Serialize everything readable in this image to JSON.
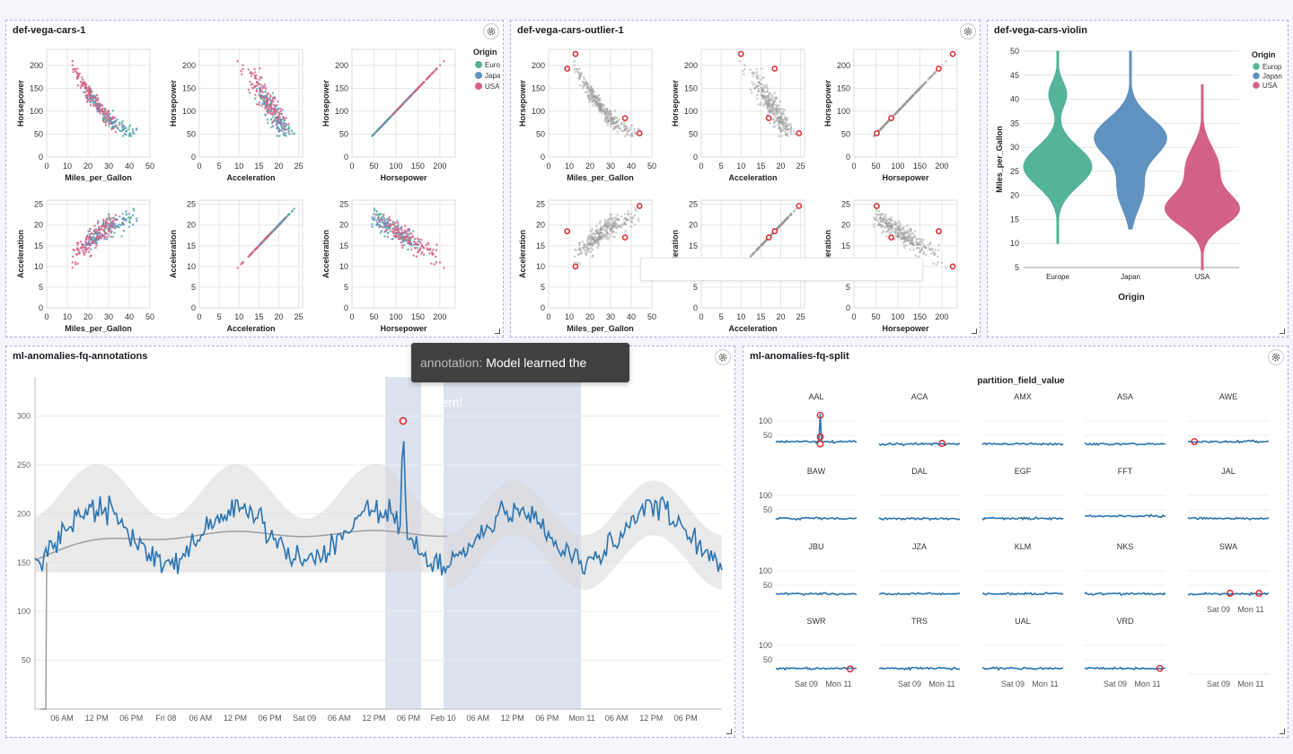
{
  "panels": {
    "cars": {
      "title": "def-vega-cars-1"
    },
    "outlier": {
      "title": "def-vega-cars-outlier-1"
    },
    "violin": {
      "title": "def-vega-cars-violin"
    },
    "annotations": {
      "title": "ml-anomalies-fq-annotations"
    },
    "split": {
      "title": "ml-anomalies-fq-split"
    }
  },
  "tooltip": {
    "key": "annotation:",
    "value": "Model learned the pattern!"
  },
  "legend": {
    "title": "Origin",
    "items": [
      "Euro",
      "Japa",
      "USA"
    ],
    "violin_items": [
      "Europ",
      "Japan",
      "USA"
    ]
  },
  "colors": {
    "europe": "#54b399",
    "japan": "#6092c0",
    "usa": "#d36086",
    "outlier": "#e7664c",
    "line": "#2b74b1",
    "band": "#dde3ee"
  },
  "chart_data": [
    {
      "type": "scatter",
      "name": "scatter-matrix",
      "fields": [
        "Miles_per_Gallon",
        "Acceleration",
        "Horsepower"
      ],
      "rows": [
        "Horsepower",
        "Acceleration"
      ],
      "x_ticks": {
        "Miles_per_Gallon": [
          "0",
          "10",
          "20",
          "30",
          "40",
          "50"
        ],
        "Acceleration": [
          "0",
          "5",
          "10",
          "15",
          "20",
          "25"
        ],
        "Horsepower": [
          "0",
          "50",
          "100",
          "150",
          "200"
        ]
      },
      "y_ticks": {
        "Horsepower": [
          "0",
          "50",
          "100",
          "150",
          "200"
        ],
        "Acceleration": [
          "0",
          "5",
          "10",
          "15",
          "20",
          "25"
        ]
      },
      "ranges": {
        "Miles_per_Gallon": [
          0,
          50
        ],
        "Acceleration": [
          0,
          26
        ],
        "Horsepower": [
          0,
          235
        ]
      },
      "legend": [
        "Euro",
        "Japa",
        "USA"
      ]
    },
    {
      "type": "violin",
      "x_title": "Origin",
      "y_title": "Miles_per_Gallon",
      "categories": [
        "Europe",
        "Japan",
        "USA"
      ],
      "y_ticks": [
        "5",
        "10",
        "15",
        "20",
        "25",
        "30",
        "35",
        "40",
        "45",
        "50"
      ],
      "ylim": [
        5,
        50
      ]
    },
    {
      "type": "line",
      "name": "anomaly-timeline",
      "y_ticks": [
        "50",
        "100",
        "150",
        "200",
        "250",
        "300"
      ],
      "ylim": [
        0,
        340
      ],
      "x_ticks": [
        "06 AM",
        "12 PM",
        "06 PM",
        "Fri 08",
        "06 AM",
        "12 PM",
        "06 PM",
        "Sat 09",
        "06 AM",
        "12 PM",
        "06 PM",
        "Feb 10",
        "06 AM",
        "12 PM",
        "06 PM",
        "Mon 11",
        "06 AM",
        "12 PM",
        "06 PM"
      ],
      "anomaly_value": 295,
      "baseline": 150
    },
    {
      "type": "line",
      "name": "small-multiples",
      "title": "partition_field_value",
      "facets": [
        "AAL",
        "ACA",
        "AMX",
        "ASA",
        "AWE",
        "BAW",
        "DAL",
        "EGF",
        "FFT",
        "JAL",
        "JBU",
        "JZA",
        "KLM",
        "NKS",
        "SWA",
        "SWR",
        "TRS",
        "UAL",
        "VRD"
      ],
      "y_ticks": [
        "100",
        "50"
      ],
      "x_ticks": [
        "Sat 09",
        "Mon 11"
      ]
    }
  ]
}
